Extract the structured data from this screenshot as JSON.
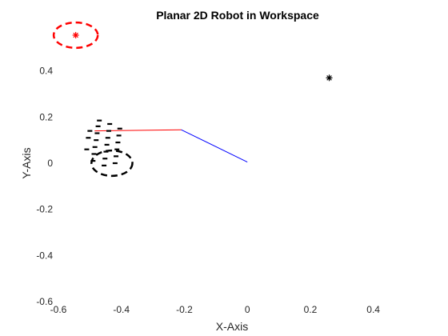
{
  "chart_data": {
    "type": "line",
    "title": "Planar 2D Robot in Workspace",
    "xlabel": "X-Axis",
    "ylabel": "Y-Axis",
    "xlim": [
      -0.6,
      0.5
    ],
    "ylim": [
      -0.6,
      0.6
    ],
    "x_ticks": [
      "-0.6",
      "-0.4",
      "-0.2",
      "0",
      "0.2",
      "0.4"
    ],
    "x_tick_values": [
      -0.6,
      -0.4,
      -0.2,
      0,
      0.2,
      0.4
    ],
    "y_ticks": [
      "-0.6",
      "-0.4",
      "-0.2",
      "0",
      "0.2",
      "0.4"
    ],
    "y_tick_values": [
      -0.6,
      -0.4,
      -0.2,
      0,
      0.2,
      0.4
    ],
    "grid": false,
    "colors": {
      "link1": "#0000ff",
      "link2": "#ff0000",
      "goal": "#ff0000",
      "marker": "#000000",
      "trail": "#000000",
      "text": "#262626"
    },
    "robot_links": [
      {
        "name": "",
        "x": [
          0,
          -0.21
        ],
        "y": [
          0.005,
          0.145
        ],
        "color": "#0000ff"
      },
      {
        "name": "",
        "x": [
          -0.21,
          -0.485
        ],
        "y": [
          0.145,
          0.14
        ],
        "color": "#ff0000"
      }
    ],
    "goal_star": {
      "x": -0.545,
      "y": 0.555,
      "color": "#ff0000"
    },
    "goal_circle": {
      "cx": -0.545,
      "cy": 0.555,
      "rx": 0.07,
      "ry": 0.055,
      "color": "#ff0000"
    },
    "target_star": {
      "x": 0.26,
      "y": 0.37,
      "color": "#000000"
    },
    "trail_circle": {
      "cx": -0.43,
      "cy": 0.0,
      "rx": 0.065,
      "ry": 0.055,
      "color": "#000000"
    },
    "trail_dashes": [
      {
        "x": -0.49,
        "y": 0.01
      },
      {
        "x": -0.487,
        "y": 0.04
      },
      {
        "x": -0.484,
        "y": 0.07
      },
      {
        "x": -0.48,
        "y": 0.1
      },
      {
        "x": -0.477,
        "y": 0.13
      },
      {
        "x": -0.474,
        "y": 0.16
      },
      {
        "x": -0.47,
        "y": 0.185
      },
      {
        "x": -0.455,
        "y": -0.01
      },
      {
        "x": -0.452,
        "y": 0.02
      },
      {
        "x": -0.449,
        "y": 0.05
      },
      {
        "x": -0.446,
        "y": 0.08
      },
      {
        "x": -0.443,
        "y": 0.11
      },
      {
        "x": -0.44,
        "y": 0.14
      },
      {
        "x": -0.437,
        "y": 0.17
      },
      {
        "x": -0.42,
        "y": 0.0
      },
      {
        "x": -0.417,
        "y": 0.03
      },
      {
        "x": -0.414,
        "y": 0.06
      },
      {
        "x": -0.411,
        "y": 0.09
      },
      {
        "x": -0.408,
        "y": 0.12
      },
      {
        "x": -0.405,
        "y": 0.15
      },
      {
        "x": -0.5,
        "y": 0.14
      },
      {
        "x": -0.505,
        "y": 0.11
      },
      {
        "x": -0.51,
        "y": 0.06
      }
    ]
  }
}
